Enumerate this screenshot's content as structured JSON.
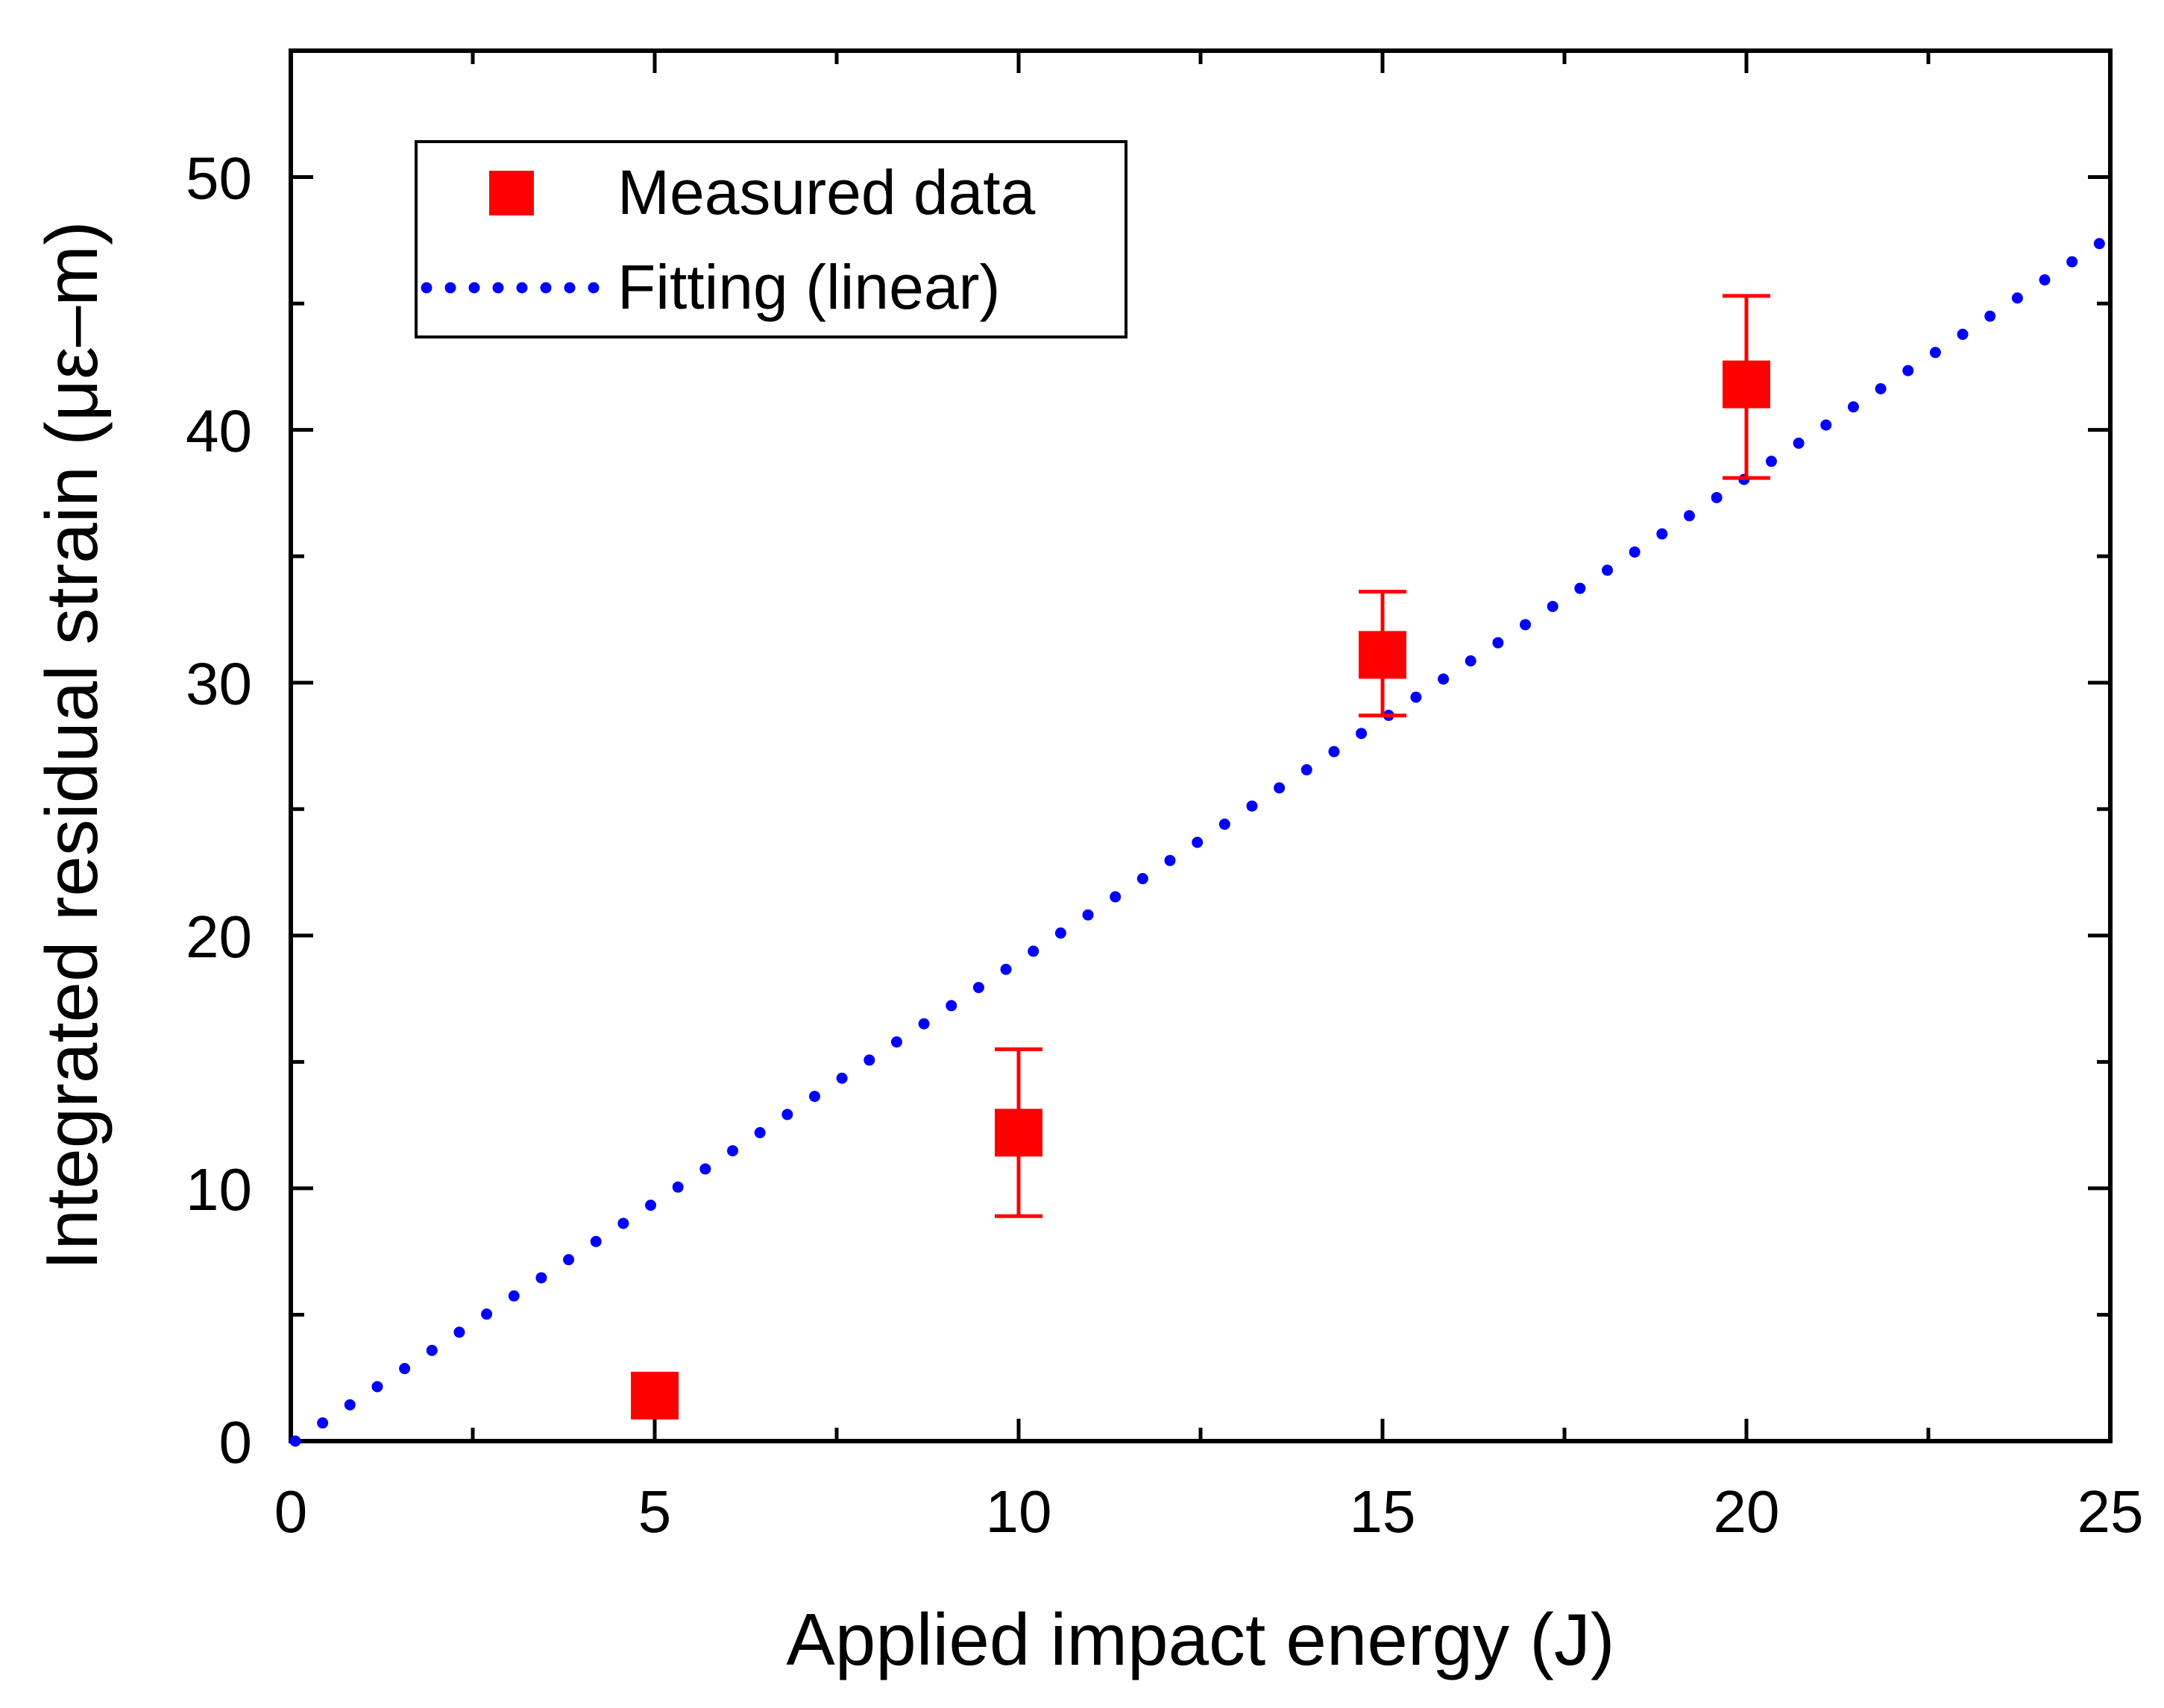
{
  "chart_data": {
    "type": "scatter",
    "title": "",
    "xlabel": "Applied impact energy (J)",
    "ylabel": "Integrated residual strain (με–m)",
    "xlim": [
      0,
      25
    ],
    "ylim": [
      0,
      55
    ],
    "x_ticks": [
      0,
      5,
      10,
      15,
      20,
      25
    ],
    "y_ticks": [
      0,
      10,
      20,
      30,
      40,
      50
    ],
    "x_tick_labels": [
      "0",
      "5",
      "10",
      "15",
      "20",
      "25"
    ],
    "y_tick_labels": [
      "0",
      "10",
      "20",
      "30",
      "40",
      "50"
    ],
    "grid": false,
    "legend_position": "top-left",
    "series": [
      {
        "name": "Measured data",
        "kind": "scatter",
        "marker": "square",
        "color": "#ff0000",
        "x": [
          5,
          10,
          15,
          20
        ],
        "y": [
          1.8,
          12.2,
          31.1,
          41.8
        ],
        "err_low": [
          0.3,
          3.3,
          2.4,
          3.7
        ],
        "err_high": [
          0.3,
          3.3,
          2.5,
          3.5
        ]
      },
      {
        "name": "Fitting (linear)",
        "kind": "line",
        "style": "dotted",
        "color": "#0000ff",
        "x": [
          0,
          25
        ],
        "y": [
          0,
          47.5
        ]
      }
    ]
  }
}
